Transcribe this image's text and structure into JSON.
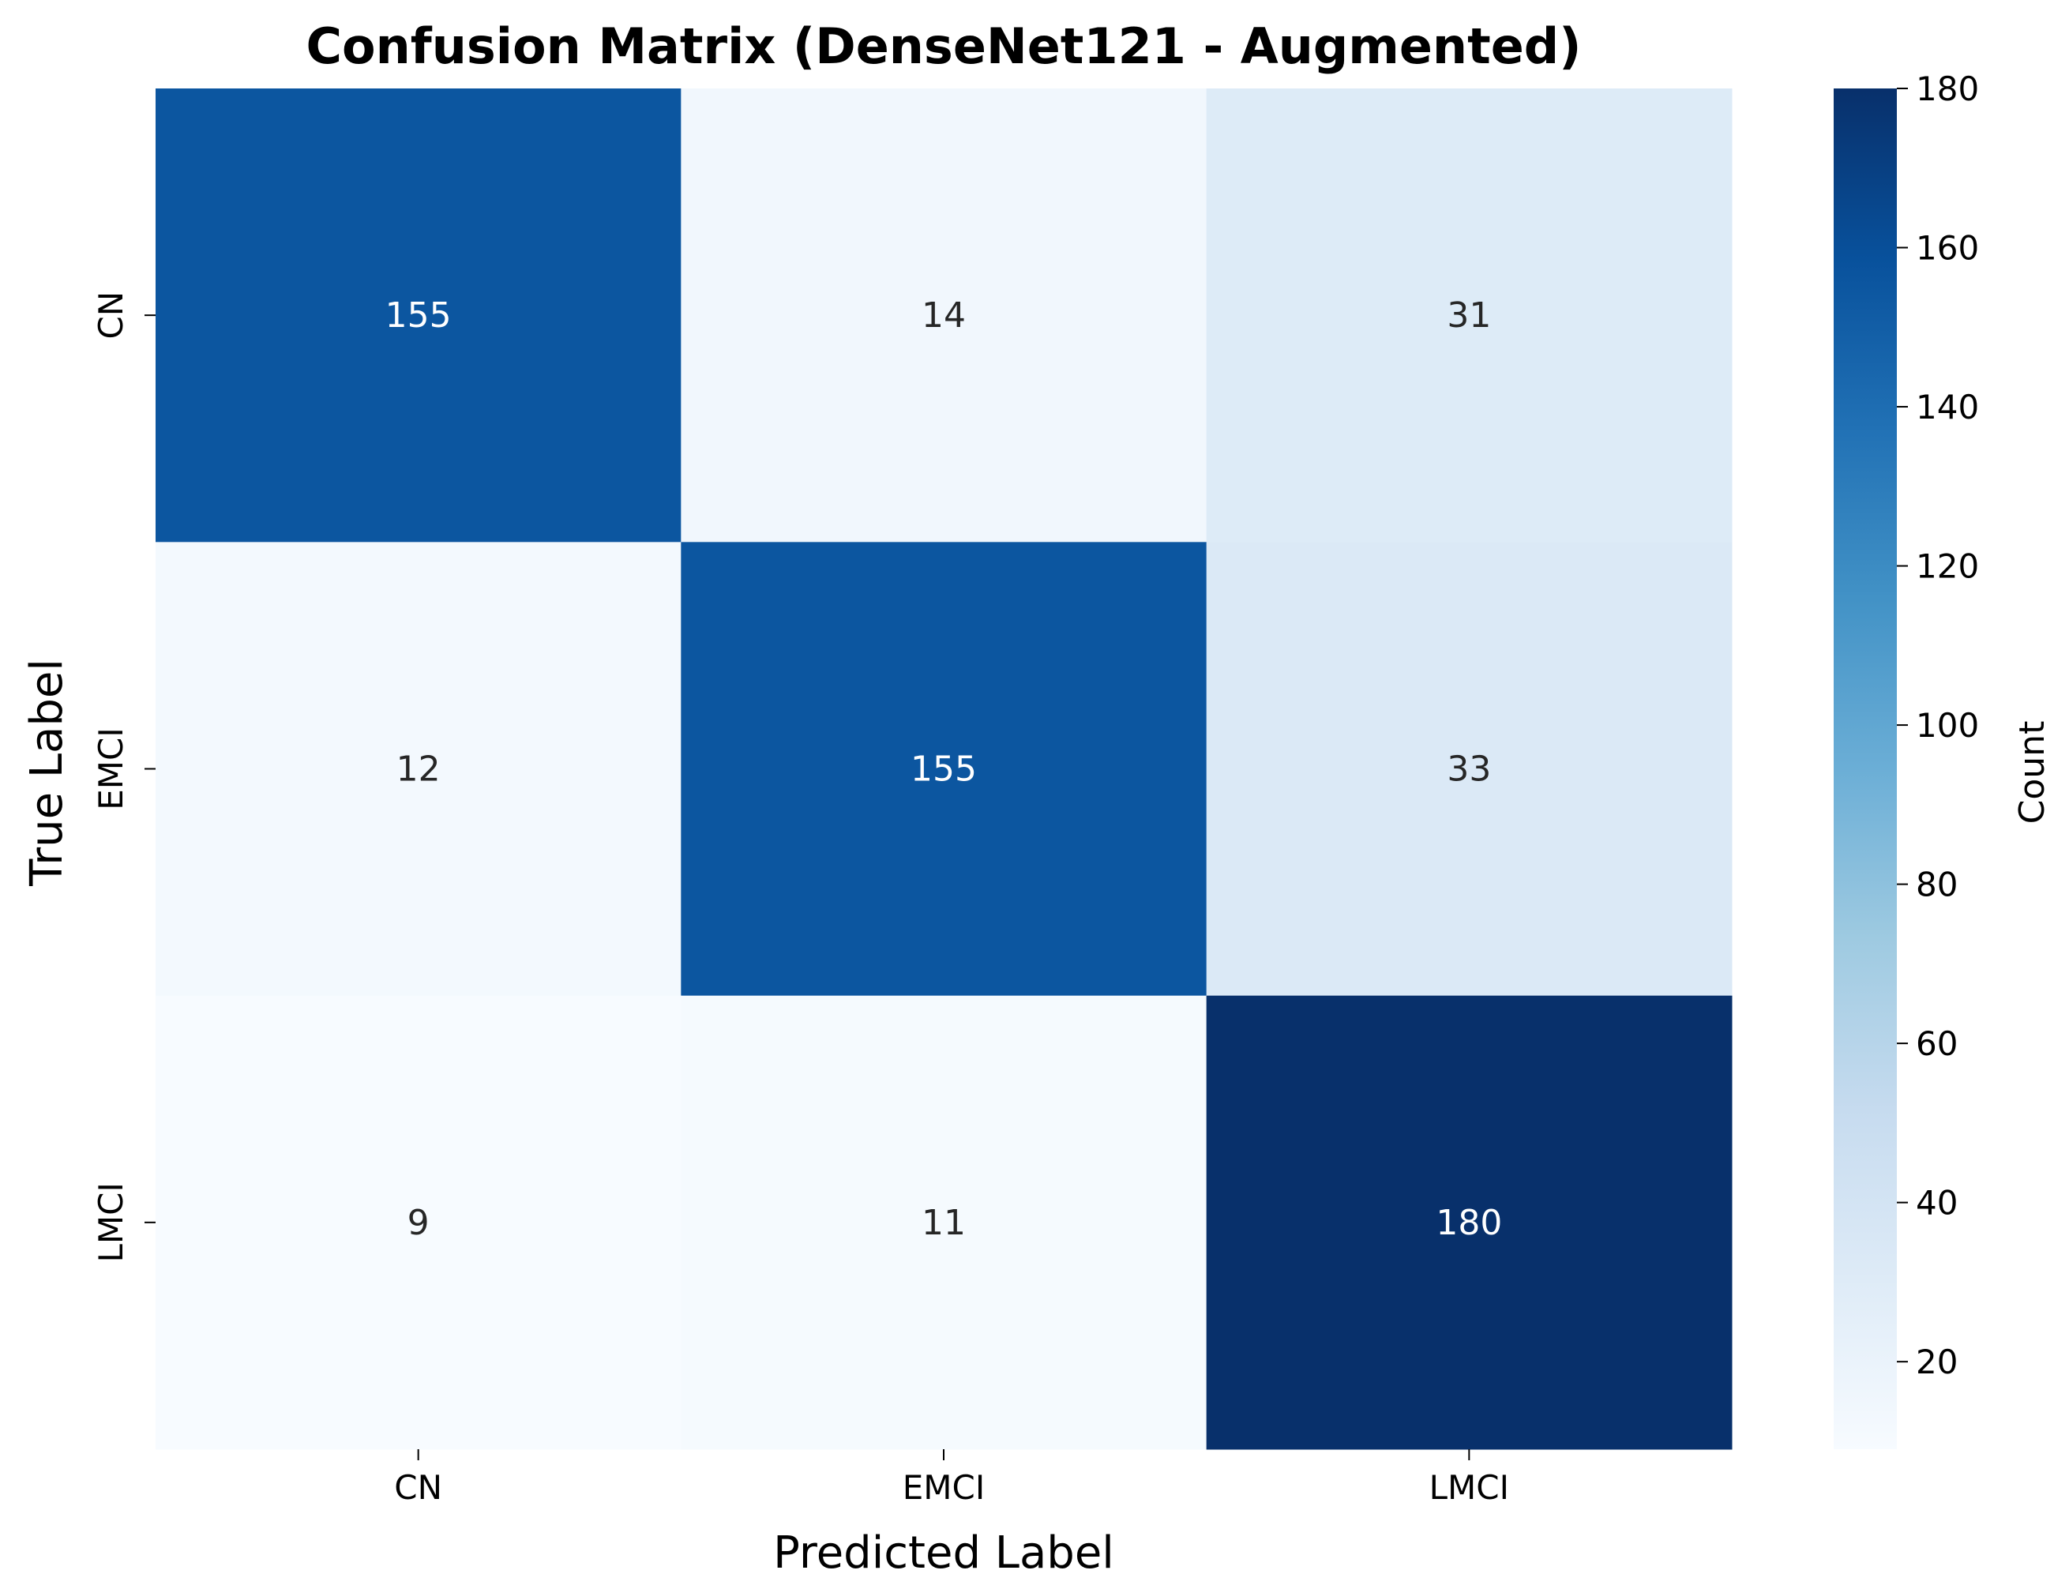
{
  "chart_data": {
    "type": "heatmap",
    "title": "Confusion Matrix (DenseNet121 - Augmented)",
    "xlabel": "Predicted Label",
    "ylabel": "True Label",
    "x_categories": [
      "CN",
      "EMCI",
      "LMCI"
    ],
    "y_categories": [
      "CN",
      "EMCI",
      "LMCI"
    ],
    "values": [
      [
        155,
        14,
        31
      ],
      [
        12,
        155,
        33
      ],
      [
        9,
        11,
        180
      ]
    ],
    "colormap": "Blues",
    "colorbar": {
      "label": "Count",
      "range": [
        9,
        180
      ],
      "ticks": [
        20,
        40,
        60,
        80,
        100,
        120,
        140,
        160,
        180
      ]
    }
  }
}
